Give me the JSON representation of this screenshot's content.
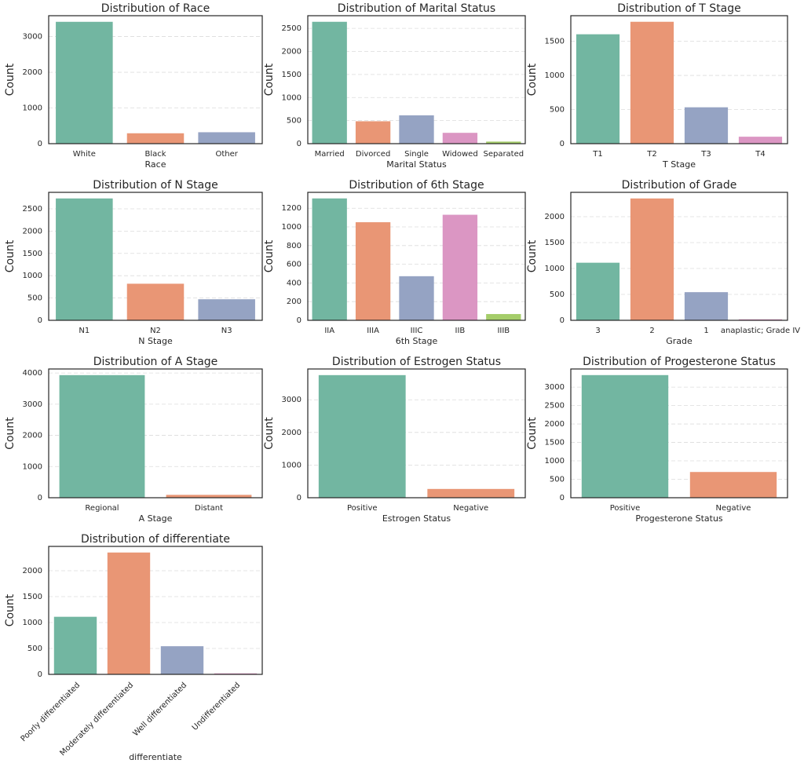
{
  "chart_data": [
    {
      "type": "bar",
      "title": "Distribution of Race",
      "xlabel": "Race",
      "ylabel": "Count",
      "categories": [
        "White",
        "Black",
        "Other"
      ],
      "values": [
        3413,
        291,
        320
      ],
      "colors": [
        "#72b6a1",
        "#e99675",
        "#95a3c3"
      ],
      "ylim": [
        0,
        3584
      ],
      "yticks": [
        0,
        1000,
        2000,
        3000
      ],
      "grid": true
    },
    {
      "type": "bar",
      "title": "Distribution of Marital Status",
      "xlabel": "Marital Status",
      "ylabel": "Count",
      "categories": [
        "Married",
        "Divorced",
        "Single",
        "Widowed",
        "Separated"
      ],
      "values": [
        2643,
        486,
        615,
        235,
        45
      ],
      "colors": [
        "#72b6a1",
        "#e99675",
        "#95a3c3",
        "#db96c3",
        "#a5cd6a"
      ],
      "ylim": [
        0,
        2775
      ],
      "yticks": [
        0,
        500,
        1000,
        1500,
        2000,
        2500
      ],
      "grid": true
    },
    {
      "type": "bar",
      "title": "Distribution of T Stage",
      "xlabel": "T Stage",
      "ylabel": "Count",
      "categories": [
        "T1",
        "T2",
        "T3",
        "T4"
      ],
      "values": [
        1603,
        1786,
        533,
        102
      ],
      "colors": [
        "#72b6a1",
        "#e99675",
        "#95a3c3",
        "#db96c3"
      ],
      "ylim": [
        0,
        1875
      ],
      "yticks": [
        0,
        500,
        1000,
        1500
      ],
      "grid": true
    },
    {
      "type": "bar",
      "title": "Distribution of N Stage",
      "xlabel": "N Stage",
      "ylabel": "Count",
      "categories": [
        "N1",
        "N2",
        "N3"
      ],
      "values": [
        2732,
        820,
        472
      ],
      "colors": [
        "#72b6a1",
        "#e99675",
        "#95a3c3"
      ],
      "ylim": [
        0,
        2869
      ],
      "yticks": [
        0,
        500,
        1000,
        1500,
        2000,
        2500
      ],
      "grid": true
    },
    {
      "type": "bar",
      "title": "Distribution of 6th Stage",
      "xlabel": "6th Stage",
      "ylabel": "Count",
      "categories": [
        "IIA",
        "IIIA",
        "IIIC",
        "IIB",
        "IIIB"
      ],
      "values": [
        1305,
        1050,
        472,
        1130,
        67
      ],
      "colors": [
        "#72b6a1",
        "#e99675",
        "#95a3c3",
        "#db96c3",
        "#a5cd6a"
      ],
      "ylim": [
        0,
        1370
      ],
      "yticks": [
        0,
        200,
        400,
        600,
        800,
        1000,
        1200
      ],
      "grid": true
    },
    {
      "type": "bar",
      "title": "Distribution of Grade",
      "xlabel": "Grade",
      "ylabel": "Count",
      "categories": [
        "3",
        "2",
        "1",
        "anaplastic; Grade IV"
      ],
      "values": [
        1111,
        2351,
        543,
        19
      ],
      "colors": [
        "#72b6a1",
        "#e99675",
        "#95a3c3",
        "#db96c3"
      ],
      "ylim": [
        0,
        2469
      ],
      "yticks": [
        0,
        500,
        1000,
        1500,
        2000
      ],
      "grid": true
    },
    {
      "type": "bar",
      "title": "Distribution of A Stage",
      "xlabel": "A Stage",
      "ylabel": "Count",
      "categories": [
        "Regional",
        "Distant"
      ],
      "values": [
        3932,
        92
      ],
      "colors": [
        "#72b6a1",
        "#e99675"
      ],
      "ylim": [
        0,
        4129
      ],
      "yticks": [
        0,
        1000,
        2000,
        3000,
        4000
      ],
      "grid": true
    },
    {
      "type": "bar",
      "title": "Distribution of Estrogen Status",
      "xlabel": "Estrogen Status",
      "ylabel": "Count",
      "categories": [
        "Positive",
        "Negative"
      ],
      "values": [
        3755,
        269
      ],
      "colors": [
        "#72b6a1",
        "#e99675"
      ],
      "ylim": [
        0,
        3943
      ],
      "yticks": [
        0,
        1000,
        2000,
        3000
      ],
      "grid": true
    },
    {
      "type": "bar",
      "title": "Distribution of Progesterone Status",
      "xlabel": "Progesterone Status",
      "ylabel": "Count",
      "categories": [
        "Positive",
        "Negative"
      ],
      "values": [
        3326,
        698
      ],
      "colors": [
        "#72b6a1",
        "#e99675"
      ],
      "ylim": [
        0,
        3492
      ],
      "yticks": [
        0,
        500,
        1000,
        1500,
        2000,
        2500,
        3000
      ],
      "grid": true
    },
    {
      "type": "bar",
      "title": "Distribution of differentiate",
      "xlabel": "differentiate",
      "ylabel": "Count",
      "categories": [
        "Poorly differentiated",
        "Moderately differentiated",
        "Well differentiated",
        "Undifferentiated"
      ],
      "values": [
        1111,
        2351,
        543,
        19
      ],
      "colors": [
        "#72b6a1",
        "#e99675",
        "#95a3c3",
        "#db96c3"
      ],
      "ylim": [
        0,
        2469
      ],
      "yticks": [
        0,
        500,
        1000,
        1500,
        2000
      ],
      "grid": true,
      "xtick_rotation": 45
    }
  ]
}
